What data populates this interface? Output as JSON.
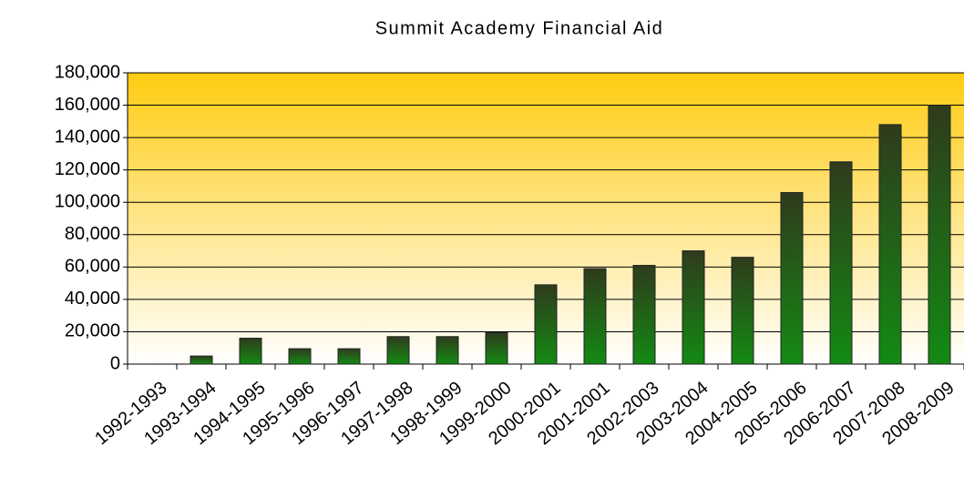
{
  "chart_data": {
    "type": "bar",
    "title": "Summit Academy Financial Aid",
    "categories": [
      "1992-1993",
      "1993-1994",
      "1994-1995",
      "1995-1996",
      "1996-1997",
      "1997-1998",
      "1998-1999",
      "1999-2000",
      "2000-2001",
      "2001-2001",
      "2002-2003",
      "2003-2004",
      "2004-2005",
      "2005-2006",
      "2006-2007",
      "2007-2008",
      "2008-2009"
    ],
    "values": [
      0,
      5000,
      16000,
      9500,
      9500,
      17000,
      17000,
      19500,
      49000,
      59000,
      61000,
      70000,
      66000,
      106000,
      125000,
      148000,
      160000
    ],
    "color": "#138a13",
    "ylim": [
      0,
      180000
    ],
    "yticks": [
      0,
      {
        "value": 20000,
        "label": "20,000"
      },
      {
        "value": 40000,
        "label": "40,000"
      },
      {
        "value": 60000,
        "label": "60,000"
      },
      {
        "value": 80000,
        "label": "80,000"
      },
      {
        "value": 100000,
        "label": "100,000"
      },
      {
        "value": 120000,
        "label": "120,000"
      },
      {
        "value": 140000,
        "label": "140,000"
      },
      {
        "value": 160000,
        "label": "160,000"
      },
      {
        "value": 180000,
        "label": "180,000"
      }
    ],
    "grid": true
  }
}
